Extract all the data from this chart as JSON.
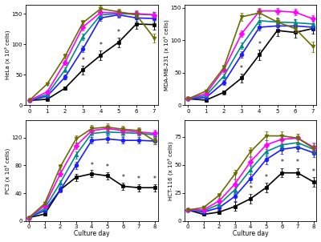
{
  "panels": {
    "HeLa": {
      "ylabel": "HeLa (x 10³ cells)",
      "xlim": [
        -0.2,
        7.2
      ],
      "ylim": [
        0,
        165
      ],
      "yticks": [
        0,
        50,
        100,
        150
      ],
      "xticks": [
        0,
        1,
        2,
        3,
        4,
        5,
        6,
        7
      ],
      "days": [
        0,
        1,
        2,
        3,
        4,
        5,
        6,
        7
      ],
      "series": [
        [
          8,
          35,
          80,
          135,
          158,
          153,
          148,
          110
        ],
        [
          8,
          22,
          70,
          128,
          152,
          151,
          150,
          148
        ],
        [
          8,
          18,
          58,
          112,
          148,
          150,
          149,
          148
        ],
        [
          8,
          15,
          46,
          92,
          143,
          148,
          143,
          142
        ],
        [
          8,
          10,
          28,
          58,
          82,
          103,
          133,
          132
        ]
      ],
      "stars_x": [
        2,
        3,
        4,
        5,
        6,
        7
      ],
      "star_y_idx": 4,
      "colors": [
        "#6B6B00",
        "#FF00FF",
        "#008B8B",
        "#1C1CFF",
        "#000000"
      ],
      "markers": [
        "v",
        "D",
        "^",
        "o",
        "s"
      ],
      "error_bars": [
        [
          0.5,
          2,
          4,
          5,
          5,
          5,
          5,
          7
        ],
        [
          0.5,
          2,
          4,
          5,
          5,
          5,
          5,
          5
        ],
        [
          0.5,
          2,
          4,
          5,
          5,
          5,
          5,
          5
        ],
        [
          0.5,
          2,
          4,
          5,
          5,
          5,
          5,
          5
        ],
        [
          0.5,
          2,
          3,
          7,
          8,
          8,
          8,
          8
        ]
      ]
    },
    "MDA-MB-231": {
      "ylabel": "MDA-MB-231 (x 10³ cells)",
      "xlim": [
        -0.2,
        7.2
      ],
      "ylim": [
        0,
        155
      ],
      "yticks": [
        0,
        50,
        100,
        150
      ],
      "xticks": [
        0,
        1,
        2,
        3,
        4,
        5,
        6,
        7
      ],
      "days": [
        0,
        1,
        2,
        3,
        4,
        5,
        6,
        7
      ],
      "series": [
        [
          10,
          22,
          58,
          136,
          142,
          128,
          118,
          90
        ],
        [
          10,
          18,
          55,
          110,
          145,
          145,
          143,
          133
        ],
        [
          10,
          15,
          45,
          92,
          130,
          128,
          127,
          125
        ],
        [
          10,
          12,
          35,
          78,
          120,
          122,
          122,
          120
        ],
        [
          10,
          8,
          20,
          42,
          78,
          115,
          112,
          118
        ]
      ],
      "stars_x": [
        2,
        3,
        4,
        5,
        6
      ],
      "star_y_idx": 4,
      "colors": [
        "#6B6B00",
        "#FF00FF",
        "#008B8B",
        "#1C1CFF",
        "#000000"
      ],
      "markers": [
        "v",
        "D",
        "^",
        "o",
        "s"
      ],
      "error_bars": [
        [
          0.5,
          2,
          4,
          6,
          6,
          6,
          6,
          8
        ],
        [
          0.5,
          2,
          4,
          5,
          5,
          5,
          5,
          5
        ],
        [
          0.5,
          2,
          4,
          5,
          5,
          5,
          5,
          5
        ],
        [
          0.5,
          2,
          4,
          5,
          5,
          5,
          5,
          5
        ],
        [
          0.5,
          2,
          3,
          7,
          8,
          8,
          8,
          8
        ]
      ]
    },
    "PC3": {
      "ylabel": "PC3 (x 10³ cells)",
      "xlim": [
        -0.2,
        8.2
      ],
      "ylim": [
        0,
        145
      ],
      "yticks": [
        0,
        40,
        80,
        120
      ],
      "xticks": [
        0,
        1,
        2,
        3,
        4,
        5,
        6,
        7,
        8
      ],
      "days": [
        0,
        1,
        2,
        3,
        4,
        5,
        6,
        7,
        8
      ],
      "series": [
        [
          5,
          25,
          78,
          118,
          133,
          135,
          132,
          130,
          115
        ],
        [
          5,
          22,
          68,
          108,
          130,
          133,
          130,
          128,
          126
        ],
        [
          5,
          18,
          55,
          95,
          126,
          128,
          127,
          126,
          124
        ],
        [
          5,
          15,
          45,
          80,
          116,
          118,
          116,
          116,
          115
        ],
        [
          5,
          10,
          45,
          63,
          68,
          65,
          50,
          48,
          48
        ]
      ],
      "stars_x": [
        3,
        4,
        5,
        6,
        7,
        8
      ],
      "star_y_idx": 4,
      "colors": [
        "#6B6B00",
        "#FF00FF",
        "#008B8B",
        "#1C1CFF",
        "#000000"
      ],
      "markers": [
        "v",
        "D",
        "^",
        "o",
        "s"
      ],
      "error_bars": [
        [
          0.5,
          2,
          4,
          5,
          5,
          5,
          5,
          5,
          5
        ],
        [
          0.5,
          2,
          4,
          5,
          5,
          5,
          5,
          5,
          5
        ],
        [
          0.5,
          2,
          4,
          5,
          5,
          5,
          5,
          5,
          5
        ],
        [
          0.5,
          2,
          4,
          5,
          5,
          5,
          5,
          5,
          5
        ],
        [
          0.5,
          2,
          3,
          5,
          5,
          5,
          5,
          5,
          5
        ]
      ]
    },
    "HCT-116": {
      "ylabel": "HCT-116 (x 10³ cells)",
      "xlim": [
        -0.2,
        8.2
      ],
      "ylim": [
        0,
        90
      ],
      "yticks": [
        0,
        25,
        50,
        75
      ],
      "xticks": [
        0,
        1,
        2,
        3,
        4,
        5,
        6,
        7,
        8
      ],
      "days": [
        0,
        1,
        2,
        3,
        4,
        5,
        6,
        7,
        8
      ],
      "series": [
        [
          10,
          12,
          23,
          42,
          62,
          76,
          76,
          74,
          65
        ],
        [
          10,
          10,
          18,
          33,
          53,
          68,
          73,
          74,
          66
        ],
        [
          10,
          9,
          15,
          28,
          46,
          62,
          68,
          70,
          64
        ],
        [
          10,
          8,
          12,
          22,
          38,
          55,
          64,
          66,
          61
        ],
        [
          10,
          6,
          8,
          13,
          20,
          30,
          43,
          43,
          35
        ]
      ],
      "stars_x": [
        3,
        4,
        5,
        6,
        7,
        8
      ],
      "star_y_idx": 4,
      "colors": [
        "#6B6B00",
        "#FF00FF",
        "#008B8B",
        "#1C1CFF",
        "#000000"
      ],
      "markers": [
        "v",
        "D",
        "^",
        "o",
        "s"
      ],
      "error_bars": [
        [
          0.5,
          1,
          2,
          4,
          4,
          4,
          4,
          4,
          4
        ],
        [
          0.5,
          1,
          2,
          4,
          4,
          4,
          4,
          4,
          4
        ],
        [
          0.5,
          1,
          2,
          4,
          4,
          4,
          4,
          4,
          4
        ],
        [
          0.5,
          1,
          2,
          4,
          4,
          4,
          4,
          4,
          4
        ],
        [
          0.5,
          1,
          2,
          4,
          4,
          4,
          4,
          4,
          4
        ]
      ]
    }
  },
  "xlabel": "Culture day",
  "background_color": "#ffffff",
  "linewidth": 1.2,
  "markersize": 3.5,
  "error_cap": 1.5
}
